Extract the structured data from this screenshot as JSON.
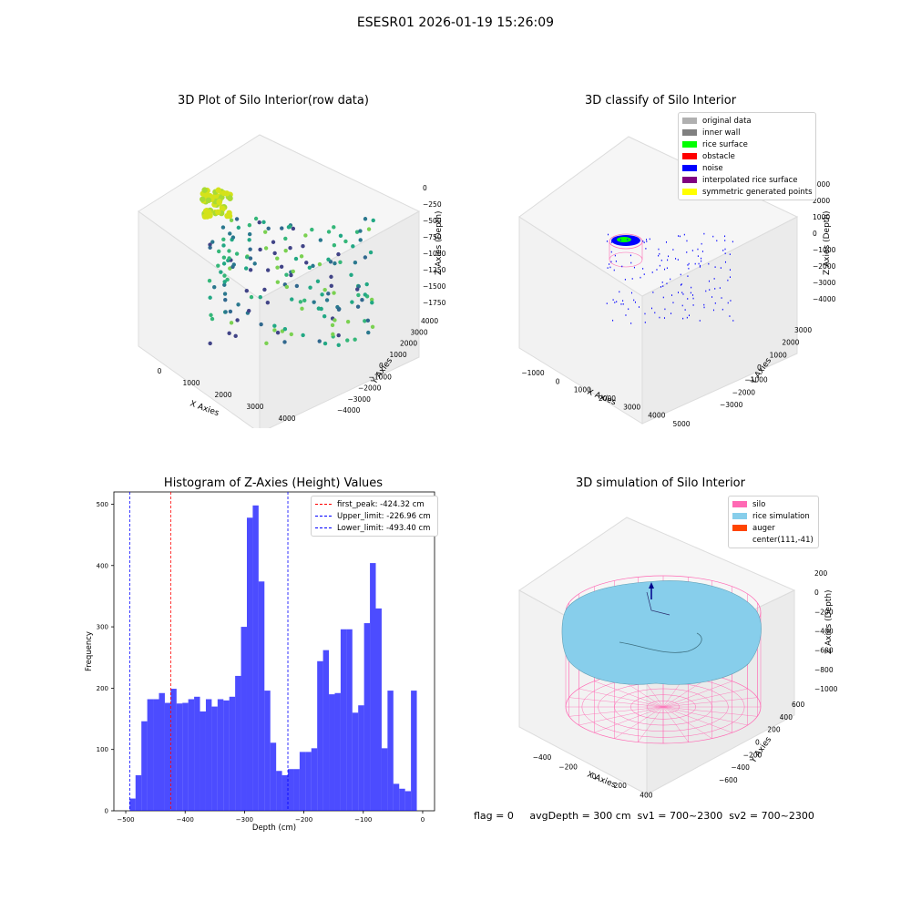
{
  "figure": {
    "suptitle": "ESESR01 2026-01-19 15:26:09",
    "footer": "flag = 0     avgDepth = 300 cm  sv1 = 700~2300  sv2 = 700~2300"
  },
  "panels": {
    "raw": {
      "title": "3D Plot of Silo Interior(row data)",
      "xlabel": "X Axies",
      "ylabel": "Y Axies",
      "zlabel": "Z Axies (Depth)",
      "xticks": [
        "0",
        "1000",
        "2000",
        "3000",
        "4000"
      ],
      "yticks": [
        "4000",
        "3000",
        "2000",
        "1000",
        "0",
        "−1000",
        "−2000",
        "−3000",
        "−4000"
      ],
      "zticks": [
        "0",
        "−250",
        "−500",
        "−750",
        "−1000",
        "−1250",
        "−1500",
        "−1750"
      ]
    },
    "classify": {
      "title": "3D classify of Silo Interior",
      "xlabel": "X Axies",
      "ylabel": "Y Axies",
      "zlabel": "Z Axies (Depth)",
      "xticks": [
        "−1000",
        "0",
        "1000",
        "2000",
        "3000",
        "4000",
        "5000"
      ],
      "yticks": [
        "3000",
        "2000",
        "1000",
        "0",
        "−1000",
        "−2000",
        "−3000"
      ],
      "zticks": [
        "3000",
        "2000",
        "1000",
        "0",
        "−1000",
        "−2000",
        "−3000",
        "−4000"
      ],
      "legend": [
        {
          "label": "original data",
          "color": "#b0b0b0"
        },
        {
          "label": "inner wall",
          "color": "#808080"
        },
        {
          "label": "rice surface",
          "color": "#00ff00"
        },
        {
          "label": "obstacle",
          "color": "#ff0000"
        },
        {
          "label": "noise",
          "color": "#0000ff"
        },
        {
          "label": "interpolated rice surface",
          "color": "#800080"
        },
        {
          "label": "symmetric generated points",
          "color": "#ffff00"
        }
      ]
    },
    "simulation": {
      "title": "3D simulation of Silo Interior",
      "xlabel": "X Axies",
      "ylabel": "Y Axies",
      "zlabel": "Z Axies (Depth)",
      "xticks": [
        "−400",
        "−200",
        "0",
        "200",
        "400",
        "600"
      ],
      "yticks": [
        "600",
        "400",
        "200",
        "0",
        "−200",
        "−400",
        "−600"
      ],
      "zticks": [
        "200",
        "0",
        "−200",
        "−400",
        "−600",
        "−800",
        "−1000"
      ],
      "legend": [
        {
          "label": "silo",
          "color": "#ff69b4"
        },
        {
          "label": "rice simulation",
          "color": "#87ceeb"
        },
        {
          "label": "auger",
          "color": "#ff4500"
        },
        {
          "label": "center(111,-41)",
          "color": ""
        }
      ]
    }
  },
  "chart_data": {
    "type": "bar",
    "title": "Histogram of Z-Axies (Height) Values",
    "xlabel": "Depth (cm)",
    "ylabel": "Frequency",
    "xlim": [
      -520,
      20
    ],
    "ylim": [
      0,
      520
    ],
    "xticks": [
      -500,
      -400,
      -300,
      -200,
      -100,
      0
    ],
    "xtick_labels": [
      "−500",
      "−400",
      "−300",
      "−200",
      "−100",
      "0"
    ],
    "yticks": [
      0,
      100,
      200,
      300,
      400,
      500
    ],
    "bar_color": "#0000ff",
    "bin_start": -493.4,
    "bin_width": 9.868,
    "values": [
      20,
      58,
      146,
      182,
      182,
      192,
      176,
      199,
      175,
      176,
      182,
      186,
      162,
      182,
      170,
      182,
      180,
      186,
      220,
      300,
      478,
      498,
      374,
      196,
      111,
      65,
      58,
      68,
      68,
      96,
      96,
      102,
      244,
      262,
      190,
      192,
      296,
      296,
      160,
      172,
      306,
      404,
      330,
      102,
      196,
      44,
      36,
      32,
      196
    ],
    "vlines": [
      {
        "x": -424.32,
        "label": "first_peak: -424.32 cm",
        "color": "#ff0000"
      },
      {
        "x": -226.96,
        "label": "Upper_limit: -226.96 cm",
        "color": "#0000ff"
      },
      {
        "x": -493.4,
        "label": "Lower_limit: -493.40 cm",
        "color": "#0000ff"
      }
    ]
  }
}
